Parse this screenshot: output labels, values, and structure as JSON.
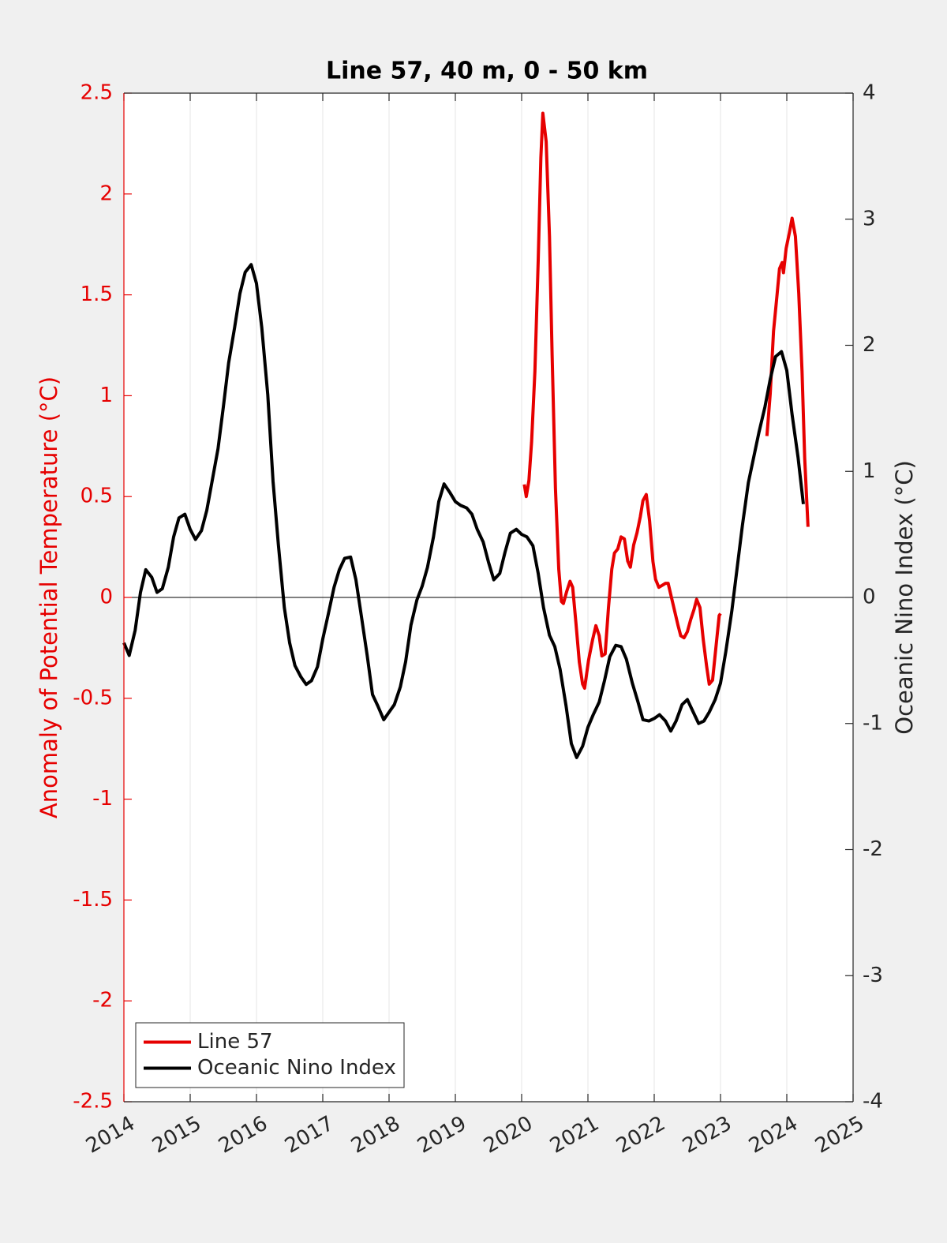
{
  "chart_data": {
    "type": "line",
    "title": "Line 57, 40 m, 0 - 50 km",
    "ylabel": "Anomaly of Potential Temperature (°C)",
    "y2label": "Oceanic Nino Index (°C)",
    "xlim": [
      2014,
      2025
    ],
    "xticks": [
      2014,
      2015,
      2016,
      2017,
      2018,
      2019,
      2020,
      2021,
      2022,
      2023,
      2024,
      2025
    ],
    "ylim": [
      -2.5,
      2.5
    ],
    "yticks": [
      -2.5,
      -2,
      -1.5,
      -1,
      -0.5,
      0,
      0.5,
      1,
      1.5,
      2,
      2.5
    ],
    "y2lim": [
      -4,
      4
    ],
    "y2ticks": [
      -4,
      -3,
      -2,
      -1,
      0,
      1,
      2,
      3,
      4
    ],
    "xgrid": true,
    "ycolor": "#e60000",
    "legend": "southwest",
    "series": [
      {
        "name": "Line 57",
        "color": "#e60000",
        "axis": "y",
        "x": [
          2020.04,
          2020.07,
          2020.11,
          2020.15,
          2020.2,
          2020.25,
          2020.29,
          2020.32,
          2020.37,
          2020.42,
          2020.46,
          2020.51,
          2020.56,
          2020.6,
          2020.63,
          2020.68,
          2020.73,
          2020.77,
          2020.82,
          2020.87,
          2020.92,
          2020.95,
          2021.01,
          2021.07,
          2021.12,
          2021.17,
          2021.21,
          2021.26,
          2021.31,
          2021.36,
          2021.4,
          2021.45,
          2021.5,
          2021.55,
          2021.6,
          2021.64,
          2021.69,
          2021.74,
          2021.79,
          2021.83,
          2021.88,
          2021.93,
          2021.98,
          2022.02,
          2022.07,
          2022.12,
          2022.17,
          2022.21,
          2022.26,
          2022.31,
          2022.36,
          2022.4,
          2022.45,
          2022.5,
          2022.55,
          2022.6,
          2022.64,
          2022.69,
          2022.74,
          2022.79,
          2022.83,
          2022.88,
          2022.93,
          2022.98,
          2023.0,
          2023.35,
          2023.7,
          2023.75,
          2023.8,
          2023.85,
          2023.89,
          2023.93,
          2023.95,
          2023.99,
          2024.04,
          2024.08,
          2024.13,
          2024.18,
          2024.23,
          2024.27,
          2024.32
        ],
        "values": [
          0.56,
          0.5,
          0.58,
          0.77,
          1.12,
          1.67,
          2.18,
          2.4,
          2.26,
          1.79,
          1.2,
          0.54,
          0.14,
          -0.02,
          -0.03,
          0.03,
          0.08,
          0.05,
          -0.13,
          -0.32,
          -0.43,
          -0.45,
          -0.31,
          -0.21,
          -0.14,
          -0.19,
          -0.29,
          -0.28,
          -0.05,
          0.14,
          0.22,
          0.24,
          0.3,
          0.29,
          0.18,
          0.15,
          0.26,
          0.32,
          0.4,
          0.48,
          0.51,
          0.38,
          0.18,
          0.09,
          0.05,
          0.06,
          0.07,
          0.07,
          0.0,
          -0.07,
          -0.14,
          -0.19,
          -0.2,
          -0.17,
          -0.11,
          -0.06,
          -0.01,
          -0.05,
          -0.21,
          -0.34,
          -0.43,
          -0.41,
          -0.25,
          -0.09,
          -0.08,
          null,
          0.8,
          1.01,
          1.32,
          1.49,
          1.63,
          1.66,
          1.61,
          1.73,
          1.81,
          1.88,
          1.79,
          1.51,
          1.12,
          0.69,
          0.35
        ]
      },
      {
        "name": "Oceanic Nino Index",
        "color": "#000000",
        "axis": "y2",
        "x": [
          2014.0,
          2014.08,
          2014.17,
          2014.25,
          2014.33,
          2014.42,
          2014.5,
          2014.58,
          2014.67,
          2014.75,
          2014.83,
          2014.92,
          2015.0,
          2015.08,
          2015.17,
          2015.25,
          2015.33,
          2015.42,
          2015.5,
          2015.58,
          2015.67,
          2015.75,
          2015.83,
          2015.92,
          2016.0,
          2016.08,
          2016.17,
          2016.25,
          2016.33,
          2016.42,
          2016.5,
          2016.58,
          2016.67,
          2016.75,
          2016.83,
          2016.92,
          2017.0,
          2017.08,
          2017.17,
          2017.25,
          2017.33,
          2017.42,
          2017.5,
          2017.58,
          2017.67,
          2017.75,
          2017.83,
          2017.92,
          2018.0,
          2018.08,
          2018.17,
          2018.25,
          2018.33,
          2018.42,
          2018.5,
          2018.58,
          2018.67,
          2018.75,
          2018.83,
          2018.92,
          2019.0,
          2019.08,
          2019.17,
          2019.25,
          2019.33,
          2019.42,
          2019.5,
          2019.58,
          2019.67,
          2019.75,
          2019.83,
          2019.92,
          2020.0,
          2020.08,
          2020.17,
          2020.25,
          2020.33,
          2020.42,
          2020.5,
          2020.58,
          2020.67,
          2020.75,
          2020.83,
          2020.92,
          2021.0,
          2021.08,
          2021.17,
          2021.25,
          2021.33,
          2021.42,
          2021.5,
          2021.58,
          2021.67,
          2021.75,
          2021.83,
          2021.92,
          2022.0,
          2022.08,
          2022.17,
          2022.25,
          2022.33,
          2022.42,
          2022.5,
          2022.58,
          2022.67,
          2022.75,
          2022.83,
          2022.92,
          2023.0,
          2023.08,
          2023.17,
          2023.25,
          2023.33,
          2023.42,
          2023.5,
          2023.58,
          2023.67,
          2023.75,
          2023.83,
          2023.92,
          2024.0,
          2024.08,
          2024.17,
          2024.25
        ],
        "values": [
          -0.36,
          -0.46,
          -0.26,
          0.04,
          0.22,
          0.16,
          0.04,
          0.07,
          0.24,
          0.48,
          0.63,
          0.66,
          0.54,
          0.46,
          0.53,
          0.69,
          0.92,
          1.18,
          1.51,
          1.86,
          2.14,
          2.41,
          2.58,
          2.64,
          2.49,
          2.14,
          1.61,
          0.92,
          0.42,
          -0.08,
          -0.36,
          -0.54,
          -0.63,
          -0.69,
          -0.66,
          -0.55,
          -0.33,
          -0.14,
          0.08,
          0.22,
          0.31,
          0.32,
          0.14,
          -0.14,
          -0.46,
          -0.77,
          -0.86,
          -0.97,
          -0.91,
          -0.85,
          -0.71,
          -0.51,
          -0.22,
          -0.02,
          0.09,
          0.24,
          0.48,
          0.76,
          0.9,
          0.83,
          0.76,
          0.73,
          0.71,
          0.66,
          0.54,
          0.44,
          0.28,
          0.14,
          0.19,
          0.36,
          0.51,
          0.54,
          0.5,
          0.48,
          0.41,
          0.19,
          -0.08,
          -0.3,
          -0.39,
          -0.57,
          -0.86,
          -1.16,
          -1.27,
          -1.18,
          -1.03,
          -0.93,
          -0.83,
          -0.66,
          -0.47,
          -0.38,
          -0.39,
          -0.49,
          -0.68,
          -0.82,
          -0.97,
          -0.98,
          -0.96,
          -0.93,
          -0.98,
          -1.06,
          -0.98,
          -0.85,
          -0.81,
          -0.9,
          -1.0,
          -0.98,
          -0.91,
          -0.81,
          -0.68,
          -0.43,
          -0.11,
          0.23,
          0.57,
          0.91,
          1.11,
          1.31,
          1.51,
          1.73,
          1.91,
          1.95,
          1.8,
          1.45,
          1.11,
          0.74
        ]
      }
    ]
  }
}
